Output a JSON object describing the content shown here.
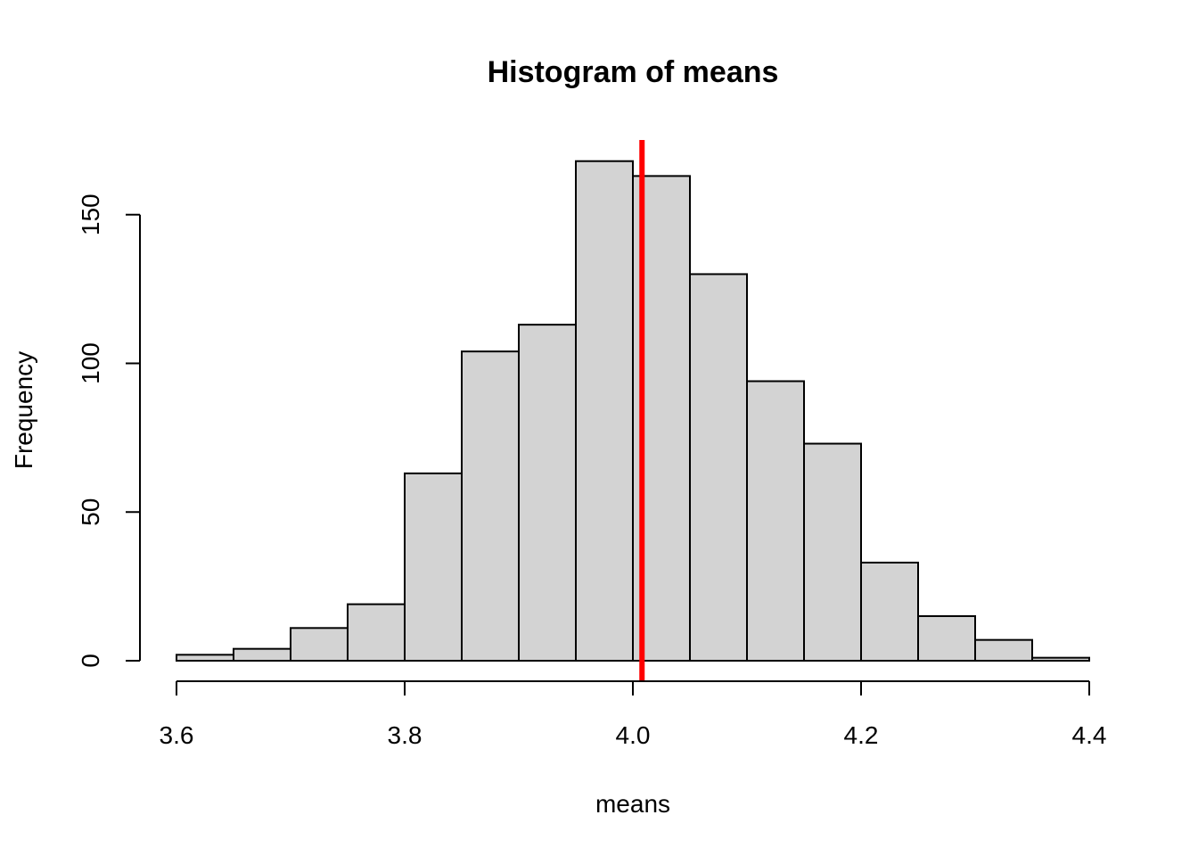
{
  "chart_data": {
    "type": "bar",
    "title": "Histogram of means",
    "xlabel": "means",
    "ylabel": "Frequency",
    "bin_edges": [
      3.6,
      3.65,
      3.7,
      3.75,
      3.8,
      3.85,
      3.9,
      3.95,
      4.0,
      4.05,
      4.1,
      4.15,
      4.2,
      4.25,
      4.3,
      4.35,
      4.4
    ],
    "values": [
      2,
      4,
      11,
      19,
      63,
      104,
      113,
      168,
      163,
      130,
      94,
      73,
      33,
      15,
      7,
      1
    ],
    "xlim": [
      3.6,
      4.4
    ],
    "ylim": [
      0,
      175
    ],
    "x_ticks": [
      3.6,
      3.8,
      4.0,
      4.2,
      4.4
    ],
    "x_tick_labels": [
      "3.6",
      "3.8",
      "4.0",
      "4.2",
      "4.4"
    ],
    "y_ticks": [
      0,
      50,
      100,
      150
    ],
    "y_tick_labels": [
      "0",
      "50",
      "100",
      "150"
    ],
    "bar_fill": "#d3d3d3",
    "vline": {
      "x": 4.008,
      "color": "#ff0000"
    },
    "grid": false
  }
}
